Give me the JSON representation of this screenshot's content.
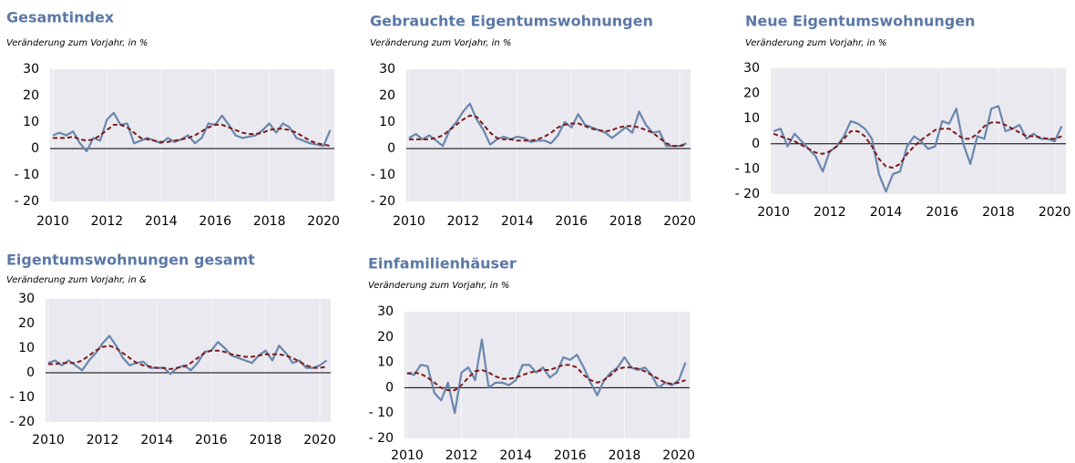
{
  "chart_data": [
    {
      "type": "line",
      "title": "Gesamtindex",
      "subtitle": "Veränderung zum Vorjahr, in %",
      "x": [
        2010,
        2010.25,
        2010.5,
        2010.75,
        2011,
        2011.25,
        2011.5,
        2011.75,
        2012,
        2012.25,
        2012.5,
        2012.75,
        2013,
        2013.25,
        2013.5,
        2013.75,
        2014,
        2014.25,
        2014.5,
        2014.75,
        2015,
        2015.25,
        2015.5,
        2015.75,
        2016,
        2016.25,
        2016.5,
        2016.75,
        2017,
        2017.25,
        2017.5,
        2017.75,
        2018,
        2018.25,
        2018.5,
        2018.75,
        2019,
        2019.25,
        2019.5,
        2019.75,
        2020,
        2020.25
      ],
      "series": [
        {
          "color": "#6a86ad",
          "values": [
            5,
            6,
            5,
            6.5,
            2,
            -1,
            4,
            3,
            11,
            13.5,
            9,
            9.5,
            2,
            3,
            4,
            3,
            2,
            4,
            2.5,
            3.5,
            5,
            2,
            4,
            9.5,
            9,
            12.5,
            9,
            5,
            4,
            4.5,
            5,
            7,
            9.5,
            6,
            9.5,
            8,
            4,
            3,
            2,
            1.5,
            1,
            7
          ]
        },
        {
          "color": "#7a1c1c",
          "dashed": true,
          "values": [
            4,
            4,
            4,
            4.5,
            3.5,
            3,
            3.5,
            5,
            7,
            9,
            9,
            8,
            6,
            4,
            3.5,
            3,
            2.5,
            2.5,
            3,
            3.5,
            4,
            5,
            6.5,
            8,
            9,
            9,
            8,
            7,
            6,
            5.5,
            5.5,
            6,
            7,
            7.5,
            7.5,
            7,
            6,
            4.5,
            3,
            2,
            1.5,
            1
          ]
        }
      ],
      "xlim": [
        2009.9,
        2020.4
      ],
      "xticks": [
        2010,
        2012,
        2014,
        2016,
        2018,
        2020
      ],
      "ylim": [
        -20,
        30
      ],
      "yticks": [
        {
          "value": -20,
          "label": "- 20"
        },
        {
          "value": -10,
          "label": "- 10"
        },
        0,
        10,
        20,
        30
      ],
      "grid": "x"
    },
    {
      "type": "line",
      "title": "Gebrauchte Eigentumswohnungen",
      "subtitle": "Veränderung zum Vorjahr, in %",
      "x": [
        2010,
        2010.25,
        2010.5,
        2010.75,
        2011,
        2011.25,
        2011.5,
        2011.75,
        2012,
        2012.25,
        2012.5,
        2012.75,
        2013,
        2013.25,
        2013.5,
        2013.75,
        2014,
        2014.25,
        2014.5,
        2014.75,
        2015,
        2015.25,
        2015.5,
        2015.75,
        2016,
        2016.25,
        2016.5,
        2016.75,
        2017,
        2017.25,
        2017.5,
        2017.75,
        2018,
        2018.25,
        2018.5,
        2018.75,
        2019,
        2019.25,
        2019.5,
        2019.75,
        2020,
        2020.25
      ],
      "series": [
        {
          "color": "#6a86ad",
          "values": [
            4,
            5.5,
            3.5,
            5,
            3,
            1,
            7,
            10,
            14,
            17,
            11,
            7,
            1.5,
            3.5,
            4.5,
            3.5,
            4.5,
            4,
            2.5,
            3,
            3,
            2,
            5,
            10,
            8,
            13,
            9,
            8,
            7,
            6,
            4,
            6,
            8,
            6,
            14,
            9,
            6,
            6.5,
            1,
            1,
            1,
            2
          ]
        },
        {
          "color": "#7a1c1c",
          "dashed": true,
          "values": [
            3.5,
            3.5,
            3.5,
            3.5,
            4,
            5,
            7,
            9,
            11,
            12.5,
            12,
            9,
            6,
            4,
            3.5,
            3.5,
            3,
            3,
            3,
            3.5,
            4.5,
            6,
            8,
            9,
            9.5,
            9.5,
            8.5,
            7.5,
            7,
            6.5,
            7,
            8,
            8.5,
            8.5,
            8,
            7,
            6,
            4,
            2,
            1,
            1,
            1.5
          ]
        }
      ],
      "xlim": [
        2009.9,
        2020.4
      ],
      "xticks": [
        2010,
        2012,
        2014,
        2016,
        2018,
        2020
      ],
      "ylim": [
        -20,
        30
      ],
      "yticks": [
        {
          "value": -20,
          "label": "- 20"
        },
        {
          "value": -10,
          "label": "- 10"
        },
        0,
        10,
        20,
        30
      ],
      "grid": "x"
    },
    {
      "type": "line",
      "title": "Neue Eigentumswohnungen",
      "subtitle": "Veränderung zum Vorjahr, in %",
      "x": [
        2010,
        2010.25,
        2010.5,
        2010.75,
        2011,
        2011.25,
        2011.5,
        2011.75,
        2012,
        2012.25,
        2012.5,
        2012.75,
        2013,
        2013.25,
        2013.5,
        2013.75,
        2014,
        2014.25,
        2014.5,
        2014.75,
        2015,
        2015.25,
        2015.5,
        2015.75,
        2016,
        2016.25,
        2016.5,
        2016.75,
        2017,
        2017.25,
        2017.5,
        2017.75,
        2018,
        2018.25,
        2018.5,
        2018.75,
        2019,
        2019.25,
        2019.5,
        2019.75,
        2020,
        2020.25
      ],
      "series": [
        {
          "color": "#6a86ad",
          "values": [
            5,
            6,
            -1,
            4,
            1,
            -2,
            -5,
            -11,
            -3,
            -1,
            3,
            9,
            8,
            6,
            2,
            -12,
            -19,
            -12,
            -11,
            -1,
            3,
            1,
            -2,
            -1,
            9,
            8,
            14,
            0,
            -8,
            3,
            2,
            14,
            15,
            5,
            6,
            7.5,
            2,
            4,
            2,
            2,
            1,
            7
          ]
        },
        {
          "color": "#7a1c1c",
          "dashed": true,
          "values": [
            4,
            3,
            2,
            1,
            -0.5,
            -2,
            -3.5,
            -4,
            -3,
            -1,
            2,
            5,
            5,
            3,
            -1,
            -6,
            -9,
            -9.5,
            -8,
            -4,
            -1,
            1.5,
            3.5,
            5.5,
            6,
            6,
            4,
            2,
            2,
            4,
            7,
            8.5,
            8.5,
            7.5,
            6,
            4.5,
            3,
            3,
            2.5,
            2,
            2,
            3
          ]
        }
      ],
      "xlim": [
        2009.9,
        2020.4
      ],
      "xticks": [
        2010,
        2012,
        2014,
        2016,
        2018,
        2020
      ],
      "ylim": [
        -20,
        30
      ],
      "yticks": [
        {
          "value": -20,
          "label": "- 20"
        },
        {
          "value": -10,
          "label": "- 10"
        },
        0,
        10,
        20,
        30
      ],
      "grid": "x"
    },
    {
      "type": "line",
      "title": "Eigentumswohnungen gesamt",
      "subtitle": "Veränderung zum Vorjahr, in &",
      "x": [
        2010,
        2010.25,
        2010.5,
        2010.75,
        2011,
        2011.25,
        2011.5,
        2011.75,
        2012,
        2012.25,
        2012.5,
        2012.75,
        2013,
        2013.25,
        2013.5,
        2013.75,
        2014,
        2014.25,
        2014.5,
        2014.75,
        2015,
        2015.25,
        2015.5,
        2015.75,
        2016,
        2016.25,
        2016.5,
        2016.75,
        2017,
        2017.25,
        2017.5,
        2017.75,
        2018,
        2018.25,
        2018.5,
        2018.75,
        2019,
        2019.25,
        2019.5,
        2019.75,
        2020,
        2020.25
      ],
      "series": [
        {
          "color": "#6a86ad",
          "values": [
            4,
            5,
            3,
            5,
            3,
            1,
            5,
            8,
            12,
            15,
            11,
            6,
            3,
            4,
            4.5,
            2,
            2,
            2,
            -0.5,
            2,
            3,
            1,
            4,
            8.5,
            9,
            12.5,
            10,
            7,
            6,
            5,
            4,
            7,
            9,
            5,
            11,
            8,
            4,
            5,
            2,
            2,
            3,
            5
          ]
        },
        {
          "color": "#7a1c1c",
          "dashed": true,
          "values": [
            3.5,
            3.5,
            4,
            4,
            4,
            5,
            7,
            9,
            10.5,
            11,
            10,
            8,
            6,
            4,
            3,
            2.5,
            2,
            2,
            1.5,
            2,
            2.5,
            4,
            6,
            8,
            9,
            9,
            8.5,
            7.5,
            7,
            6.5,
            6.5,
            7,
            7.5,
            7.5,
            7.5,
            7,
            6,
            4.5,
            3,
            2,
            2,
            2.5
          ]
        }
      ],
      "xlim": [
        2009.9,
        2020.4
      ],
      "xticks": [
        2010,
        2012,
        2014,
        2016,
        2018,
        2020
      ],
      "ylim": [
        -20,
        30
      ],
      "yticks": [
        {
          "value": -20,
          "label": "- 20"
        },
        {
          "value": -10,
          "label": "- 10"
        },
        0,
        10,
        20,
        30
      ],
      "grid": "x"
    },
    {
      "type": "line",
      "title": "Einfamilienhäuser",
      "subtitle": "Veränderung zum Vorjahr, in %",
      "x": [
        2010,
        2010.25,
        2010.5,
        2010.75,
        2011,
        2011.25,
        2011.5,
        2011.75,
        2012,
        2012.25,
        2012.5,
        2012.75,
        2013,
        2013.25,
        2013.5,
        2013.75,
        2014,
        2014.25,
        2014.5,
        2014.75,
        2015,
        2015.25,
        2015.5,
        2015.75,
        2016,
        2016.25,
        2016.5,
        2016.75,
        2017,
        2017.25,
        2017.5,
        2017.75,
        2018,
        2018.25,
        2018.5,
        2018.75,
        2019,
        2019.25,
        2019.5,
        2019.75,
        2020,
        2020.25
      ],
      "series": [
        {
          "color": "#6a86ad",
          "values": [
            6,
            5,
            9,
            8.5,
            -2,
            -5,
            2,
            -10,
            6,
            8,
            3,
            19,
            0,
            2,
            2,
            1,
            3,
            9,
            9,
            6,
            8,
            4,
            6,
            12,
            11,
            13,
            8,
            2,
            -3,
            3,
            6,
            8,
            12,
            8,
            7,
            8,
            5,
            0,
            2,
            1,
            3,
            10
          ]
        },
        {
          "color": "#7a1c1c",
          "dashed": true,
          "values": [
            5.5,
            6,
            5.5,
            4,
            2,
            0,
            -1,
            -1,
            1,
            4,
            6.5,
            7,
            6,
            4.5,
            3.5,
            3.5,
            4,
            5,
            6,
            6.5,
            7,
            7,
            8,
            9,
            9,
            8,
            5,
            3,
            2,
            3,
            5,
            7.5,
            8,
            8,
            7.5,
            6.5,
            5,
            3.5,
            2,
            1.5,
            2,
            3
          ]
        }
      ],
      "xlim": [
        2009.9,
        2020.4
      ],
      "xticks": [
        2010,
        2012,
        2014,
        2016,
        2018,
        2020
      ],
      "ylim": [
        -20,
        30
      ],
      "yticks": [
        {
          "value": -20,
          "label": "- 20"
        },
        {
          "value": -10,
          "label": "- 10"
        },
        0,
        10,
        20,
        30
      ],
      "grid": "x"
    }
  ]
}
